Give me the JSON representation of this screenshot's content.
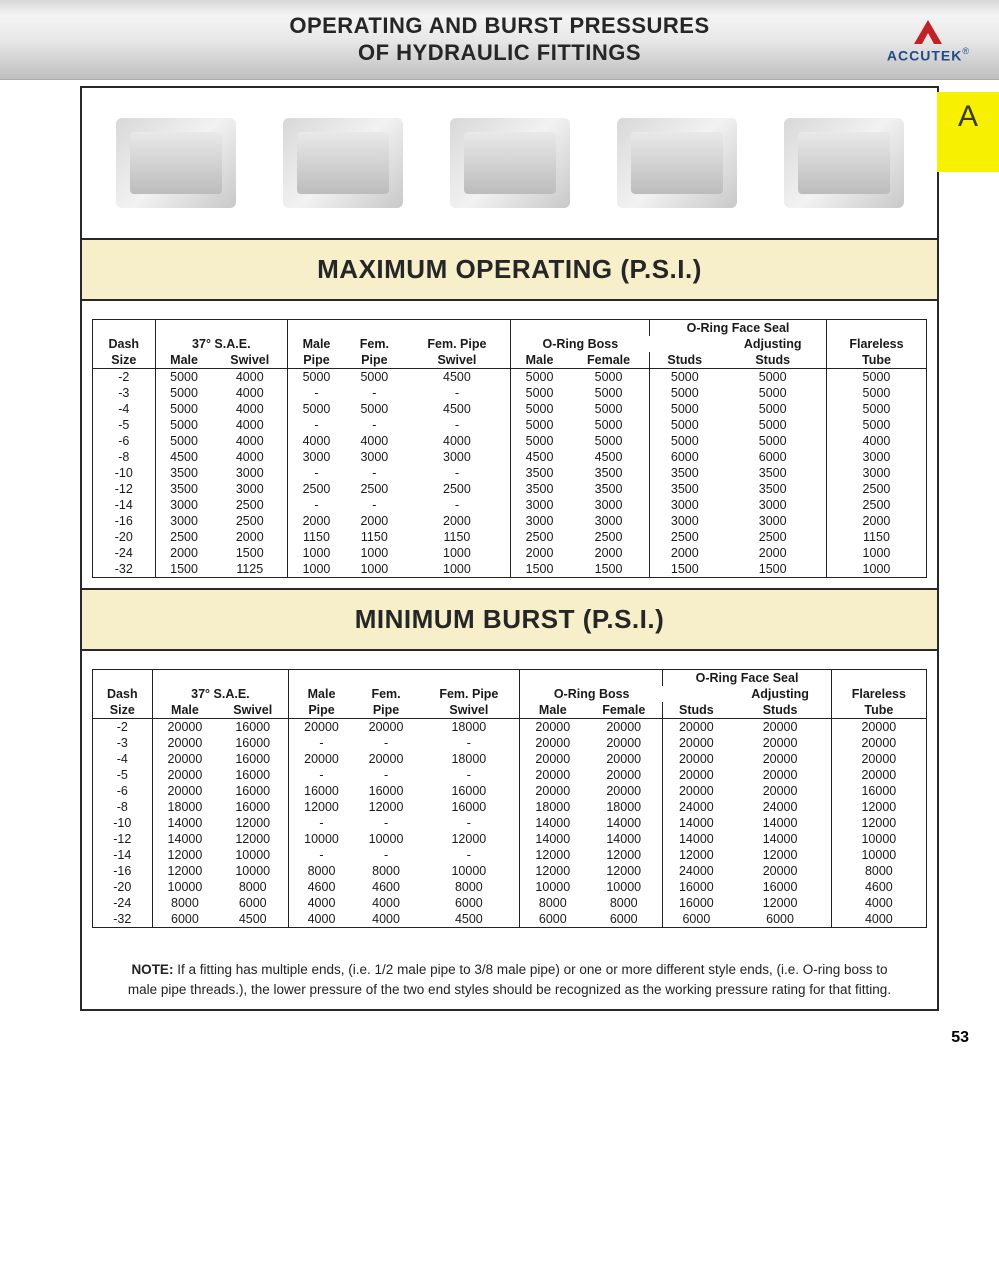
{
  "header": {
    "title_line1": "OPERATING AND BURST PRESSURES",
    "title_line2": "OF HYDRAULIC FITTINGS",
    "logo_text": "ACCUTEK",
    "logo_reg": "®",
    "logo_triangle_color": "#c22128",
    "logo_text_color": "#204a8a",
    "tab_letter": "A",
    "tab_bg": "#f7f000"
  },
  "section_titles": {
    "max": "MAXIMUM OPERATING (P.S.I.)",
    "min": "MINIMUM BURST (P.S.I.)",
    "band_bg": "#f6efca"
  },
  "columns": {
    "dash": [
      "Dash",
      "Size"
    ],
    "sae_group": "37° S.A.E.",
    "sae_male": "Male",
    "sae_swivel": "Swivel",
    "male_pipe": [
      "Male",
      "Pipe"
    ],
    "fem_pipe": [
      "Fem.",
      "Pipe"
    ],
    "fem_pipe_swivel": [
      "Fem. Pipe",
      "Swivel"
    ],
    "oring_boss_group": "O-Ring Boss",
    "oring_male": "Male",
    "oring_female": "Female",
    "oring_face_group": "O-Ring Face Seal",
    "studs": "Studs",
    "adj_studs": [
      "Adjusting",
      "Studs"
    ],
    "flareless": [
      "Flareless",
      "Tube"
    ]
  },
  "max_rows": [
    {
      "dash": "-2",
      "v": [
        "5000",
        "4000",
        "5000",
        "5000",
        "4500",
        "5000",
        "5000",
        "5000",
        "5000",
        "5000"
      ]
    },
    {
      "dash": "-3",
      "v": [
        "5000",
        "4000",
        "-",
        "-",
        "-",
        "5000",
        "5000",
        "5000",
        "5000",
        "5000"
      ]
    },
    {
      "dash": "-4",
      "v": [
        "5000",
        "4000",
        "5000",
        "5000",
        "4500",
        "5000",
        "5000",
        "5000",
        "5000",
        "5000"
      ]
    },
    {
      "dash": "-5",
      "v": [
        "5000",
        "4000",
        "-",
        "-",
        "-",
        "5000",
        "5000",
        "5000",
        "5000",
        "5000"
      ]
    },
    {
      "dash": "-6",
      "v": [
        "5000",
        "4000",
        "4000",
        "4000",
        "4000",
        "5000",
        "5000",
        "5000",
        "5000",
        "4000"
      ]
    },
    {
      "dash": "-8",
      "v": [
        "4500",
        "4000",
        "3000",
        "3000",
        "3000",
        "4500",
        "4500",
        "6000",
        "6000",
        "3000"
      ]
    },
    {
      "dash": "-10",
      "v": [
        "3500",
        "3000",
        "-",
        "-",
        "-",
        "3500",
        "3500",
        "3500",
        "3500",
        "3000"
      ]
    },
    {
      "dash": "-12",
      "v": [
        "3500",
        "3000",
        "2500",
        "2500",
        "2500",
        "3500",
        "3500",
        "3500",
        "3500",
        "2500"
      ]
    },
    {
      "dash": "-14",
      "v": [
        "3000",
        "2500",
        "-",
        "-",
        "-",
        "3000",
        "3000",
        "3000",
        "3000",
        "2500"
      ]
    },
    {
      "dash": "-16",
      "v": [
        "3000",
        "2500",
        "2000",
        "2000",
        "2000",
        "3000",
        "3000",
        "3000",
        "3000",
        "2000"
      ]
    },
    {
      "dash": "-20",
      "v": [
        "2500",
        "2000",
        "1150",
        "1150",
        "1150",
        "2500",
        "2500",
        "2500",
        "2500",
        "1150"
      ]
    },
    {
      "dash": "-24",
      "v": [
        "2000",
        "1500",
        "1000",
        "1000",
        "1000",
        "2000",
        "2000",
        "2000",
        "2000",
        "1000"
      ]
    },
    {
      "dash": "-32",
      "v": [
        "1500",
        "1125",
        "1000",
        "1000",
        "1000",
        "1500",
        "1500",
        "1500",
        "1500",
        "1000"
      ]
    }
  ],
  "min_rows": [
    {
      "dash": "-2",
      "v": [
        "20000",
        "16000",
        "20000",
        "20000",
        "18000",
        "20000",
        "20000",
        "20000",
        "20000",
        "20000"
      ]
    },
    {
      "dash": "-3",
      "v": [
        "20000",
        "16000",
        "-",
        "-",
        "-",
        "20000",
        "20000",
        "20000",
        "20000",
        "20000"
      ]
    },
    {
      "dash": "-4",
      "v": [
        "20000",
        "16000",
        "20000",
        "20000",
        "18000",
        "20000",
        "20000",
        "20000",
        "20000",
        "20000"
      ]
    },
    {
      "dash": "-5",
      "v": [
        "20000",
        "16000",
        "-",
        "-",
        "-",
        "20000",
        "20000",
        "20000",
        "20000",
        "20000"
      ]
    },
    {
      "dash": "-6",
      "v": [
        "20000",
        "16000",
        "16000",
        "16000",
        "16000",
        "20000",
        "20000",
        "20000",
        "20000",
        "16000"
      ]
    },
    {
      "dash": "-8",
      "v": [
        "18000",
        "16000",
        "12000",
        "12000",
        "16000",
        "18000",
        "18000",
        "24000",
        "24000",
        "12000"
      ]
    },
    {
      "dash": "-10",
      "v": [
        "14000",
        "12000",
        "-",
        "-",
        "-",
        "14000",
        "14000",
        "14000",
        "14000",
        "12000"
      ]
    },
    {
      "dash": "-12",
      "v": [
        "14000",
        "12000",
        "10000",
        "10000",
        "12000",
        "14000",
        "14000",
        "14000",
        "14000",
        "10000"
      ]
    },
    {
      "dash": "-14",
      "v": [
        "12000",
        "10000",
        "-",
        "-",
        "-",
        "12000",
        "12000",
        "12000",
        "12000",
        "10000"
      ]
    },
    {
      "dash": "-16",
      "v": [
        "12000",
        "10000",
        "8000",
        "8000",
        "10000",
        "12000",
        "12000",
        "24000",
        "20000",
        "8000"
      ]
    },
    {
      "dash": "-20",
      "v": [
        "10000",
        "8000",
        "4600",
        "4600",
        "8000",
        "10000",
        "10000",
        "16000",
        "16000",
        "4600"
      ]
    },
    {
      "dash": "-24",
      "v": [
        "8000",
        "6000",
        "4000",
        "4000",
        "6000",
        "8000",
        "8000",
        "16000",
        "12000",
        "4000"
      ]
    },
    {
      "dash": "-32",
      "v": [
        "6000",
        "4500",
        "4000",
        "4000",
        "4500",
        "6000",
        "6000",
        "6000",
        "6000",
        "4000"
      ]
    }
  ],
  "note": {
    "label": "NOTE:",
    "text": "If a fitting has multiple ends, (i.e. 1/2 male pipe to 3/8 male pipe) or one or more different style ends, (i.e. O-ring boss to male pipe threads.), the lower pressure of the two end styles should be recognized as the working pressure rating for that fitting."
  },
  "page_number": "53"
}
